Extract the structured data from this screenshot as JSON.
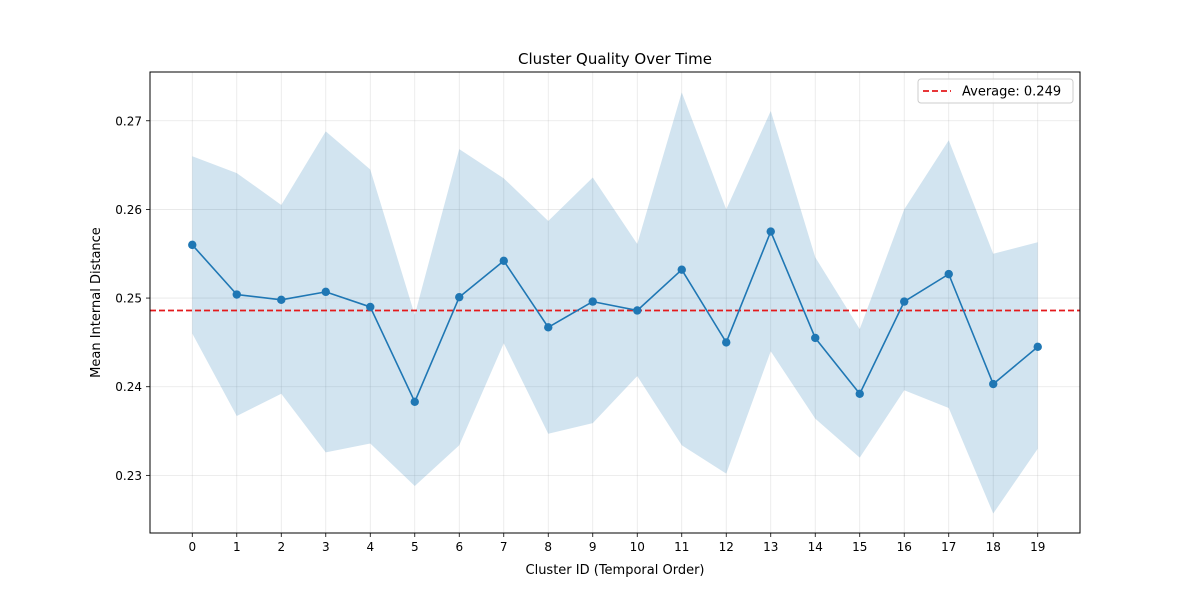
{
  "chart_data": {
    "type": "line",
    "title": "Cluster Quality Over Time",
    "xlabel": "Cluster ID (Temporal Order)",
    "ylabel": "Mean Internal Distance",
    "x": [
      0,
      1,
      2,
      3,
      4,
      5,
      6,
      7,
      8,
      9,
      10,
      11,
      12,
      13,
      14,
      15,
      16,
      17,
      18,
      19
    ],
    "xlim": [
      -0.95,
      19.95
    ],
    "ylim": [
      0.2235,
      0.2755
    ],
    "yticks": [
      0.23,
      0.24,
      0.25,
      0.26,
      0.27
    ],
    "ytick_labels": [
      "0.23",
      "0.24",
      "0.25",
      "0.26",
      "0.27"
    ],
    "grid": true,
    "series": [
      {
        "values": [
          0.256,
          0.2504,
          0.2498,
          0.2507,
          0.249,
          0.2383,
          0.2501,
          0.2542,
          0.2467,
          0.2496,
          0.2486,
          0.2532,
          0.245,
          0.2575,
          0.2455,
          0.2392,
          0.2496,
          0.2527,
          0.2403,
          0.2445
        ],
        "upper": [
          0.266,
          0.2641,
          0.2605,
          0.2688,
          0.2645,
          0.2481,
          0.2668,
          0.2635,
          0.2587,
          0.2636,
          0.2561,
          0.2732,
          0.26,
          0.2711,
          0.2546,
          0.2465,
          0.26,
          0.2678,
          0.255,
          0.2563
        ],
        "lower": [
          0.246,
          0.2367,
          0.2392,
          0.2326,
          0.2336,
          0.2288,
          0.2334,
          0.2449,
          0.2347,
          0.2359,
          0.2412,
          0.2334,
          0.2302,
          0.244,
          0.2364,
          0.232,
          0.2396,
          0.2376,
          0.2257,
          0.233
        ],
        "color": "#1f77b4",
        "band_color": "#1f77b4"
      }
    ],
    "reference_line": {
      "value": 0.2486,
      "label": "Average: 0.249",
      "color": "#e41a1c",
      "style": "dashed"
    },
    "legend_position": "top-right"
  }
}
